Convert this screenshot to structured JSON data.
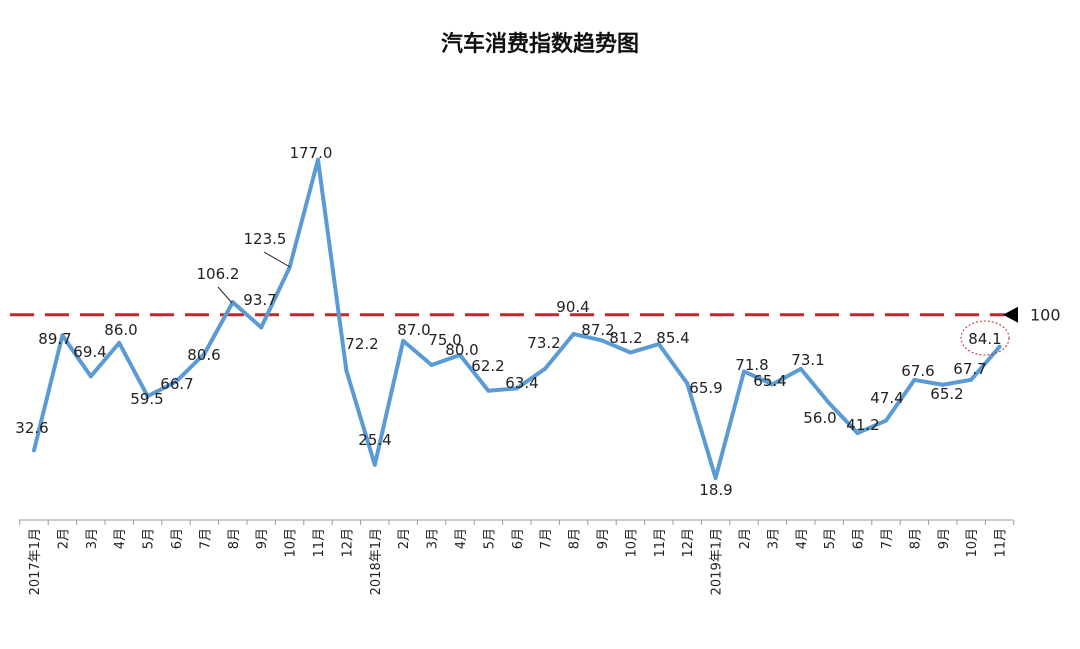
{
  "chart_data": {
    "type": "line",
    "title": "汽车消费指数趋势图",
    "xlabel": "",
    "ylabel": "",
    "categories": [
      "2017年1月",
      "2月",
      "3月",
      "4月",
      "5月",
      "6月",
      "7月",
      "8月",
      "9月",
      "10月",
      "11月",
      "12月",
      "2018年1月",
      "2月",
      "3月",
      "4月",
      "5月",
      "6月",
      "7月",
      "8月",
      "9月",
      "10月",
      "11月",
      "12月",
      "2019年1月",
      "2月",
      "3月",
      "4月",
      "5月",
      "6月",
      "7月",
      "8月",
      "9月",
      "10月",
      "11月"
    ],
    "values": [
      32.6,
      89.7,
      69.4,
      86.0,
      59.5,
      66.7,
      80.6,
      106.2,
      93.7,
      123.5,
      177.0,
      72.2,
      25.4,
      87.0,
      75.0,
      80.0,
      62.2,
      63.4,
      73.2,
      90.4,
      87.2,
      81.2,
      85.4,
      65.9,
      18.9,
      71.8,
      65.4,
      73.1,
      56.0,
      41.2,
      47.4,
      67.6,
      65.2,
      67.7,
      84.1
    ],
    "reference_line": {
      "value": 100,
      "label": "100",
      "color": "#c0282d",
      "style": "dashed"
    },
    "highlighted_point": "84.1",
    "line_color": "#5b9bd5",
    "grid": false,
    "legend": "none"
  }
}
